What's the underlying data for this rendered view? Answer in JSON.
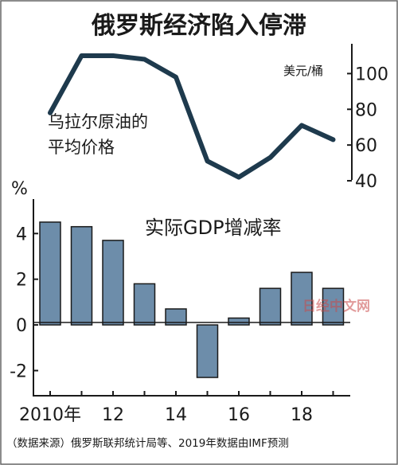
{
  "chart_data": [
    {
      "type": "line",
      "title": "俄罗斯经济陷入停滞",
      "series_label": "乌拉尔原油的平均价格",
      "unit_label": "美元/桶",
      "x": [
        2010,
        2011,
        2012,
        2013,
        2014,
        2015,
        2016,
        2017,
        2018,
        2019
      ],
      "values": [
        78,
        110,
        110,
        108,
        98,
        51,
        42,
        53,
        71,
        63
      ],
      "ylim": [
        36,
        118
      ],
      "yticks": [
        "100",
        "80",
        "60",
        "40"
      ],
      "ytick_values": [
        100,
        80,
        60,
        40
      ],
      "line_color": "#1e3a4d"
    },
    {
      "type": "bar",
      "series_label": "实际GDP增减率",
      "unit_label": "%",
      "x": [
        2010,
        2011,
        2012,
        2013,
        2014,
        2015,
        2016,
        2017,
        2018,
        2019
      ],
      "values": [
        4.5,
        4.3,
        3.7,
        1.8,
        0.7,
        -2.3,
        0.3,
        1.6,
        2.3,
        1.6
      ],
      "ylim": [
        -3.1,
        5.3
      ],
      "yticks": [
        "4",
        "2",
        "0",
        "-2"
      ],
      "ytick_values": [
        4,
        2,
        0,
        -2
      ],
      "xticks": [
        "2010年",
        "12",
        "14",
        "16",
        "18"
      ],
      "xtick_values": [
        2010,
        2012,
        2014,
        2016,
        2018
      ],
      "bar_color": "#6d8daa"
    }
  ],
  "source": "（数据来源）俄罗斯联邦统计局等、2019年数据由IMF预测",
  "watermark": "日经中文网"
}
